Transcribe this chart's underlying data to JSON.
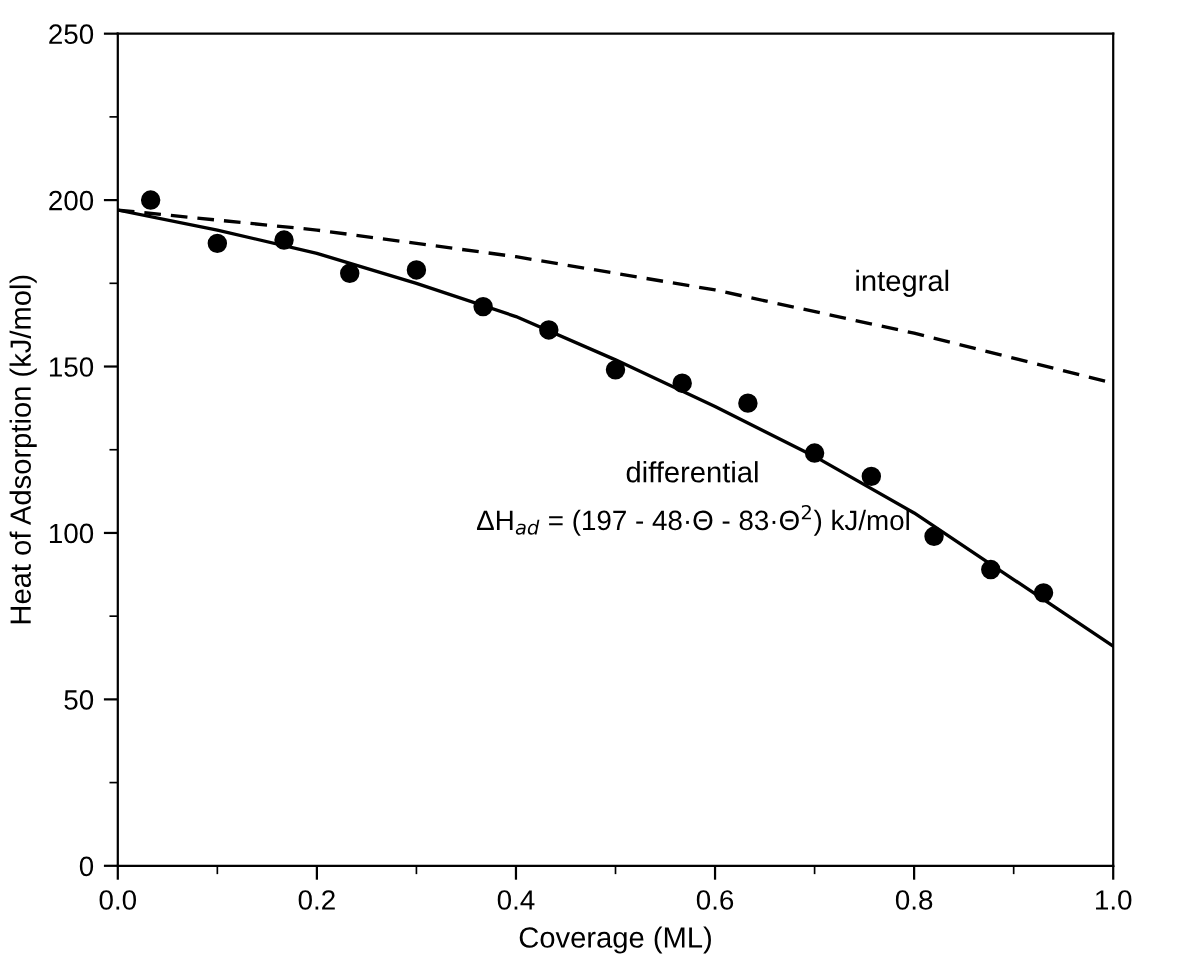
{
  "chart_data": {
    "type": "scatter",
    "xlabel": "Coverage (ML)",
    "ylabel": "Heat of Adsorption (kJ/mol)",
    "xlim": [
      0.0,
      1.0
    ],
    "ylim": [
      0,
      250
    ],
    "xticks": [
      {
        "value": 0.0,
        "label": "0.0"
      },
      {
        "value": 0.1,
        "label": null
      },
      {
        "value": 0.2,
        "label": "0.2"
      },
      {
        "value": 0.3,
        "label": null
      },
      {
        "value": 0.4,
        "label": "0.4"
      },
      {
        "value": 0.5,
        "label": null
      },
      {
        "value": 0.6,
        "label": "0.6"
      },
      {
        "value": 0.7,
        "label": null
      },
      {
        "value": 0.8,
        "label": "0.8"
      },
      {
        "value": 0.9,
        "label": null
      },
      {
        "value": 1.0,
        "label": "1.0"
      }
    ],
    "yticks": [
      0,
      {
        "value": 25,
        "label": null
      },
      50,
      {
        "value": 75,
        "label": null
      },
      100,
      {
        "value": 125,
        "label": null
      },
      150,
      {
        "value": 175,
        "label": null
      },
      200,
      {
        "value": 225,
        "label": null
      },
      250
    ],
    "grid": false,
    "legend": false,
    "series": [
      {
        "color": "#000000",
        "marker": "circle",
        "x": [
          0.033,
          0.1,
          0.167,
          0.233,
          0.3,
          0.367,
          0.433,
          0.5,
          0.567,
          0.633,
          0.7,
          0.757,
          0.82,
          0.877,
          0.93
        ],
        "values": [
          200,
          187,
          188,
          178,
          179,
          168,
          161,
          149,
          145,
          139,
          124,
          117,
          99,
          89,
          82
        ]
      },
      {
        "type": "line",
        "color": "#000000",
        "line_style": "solid",
        "marker": "none",
        "x": [
          0.0,
          0.1,
          0.2,
          0.3,
          0.4,
          0.5,
          0.6,
          0.7,
          0.8,
          0.9,
          1.0
        ],
        "values": [
          197,
          191,
          184,
          175,
          165,
          152,
          138,
          123,
          106,
          86,
          66
        ]
      },
      {
        "type": "line",
        "color": "#000000",
        "line_style": "dashed",
        "marker": "none",
        "x": [
          0.0,
          0.2,
          0.4,
          0.5,
          0.6,
          0.8,
          1.0
        ],
        "values": [
          197,
          191,
          183,
          178,
          173,
          160,
          145
        ]
      }
    ],
    "annotations": [
      "integral",
      "differential",
      "ΔH$_{ad}$ = (197 - 48·Θ - 83·Θ$^{2}$) kJ/mol"
    ]
  }
}
